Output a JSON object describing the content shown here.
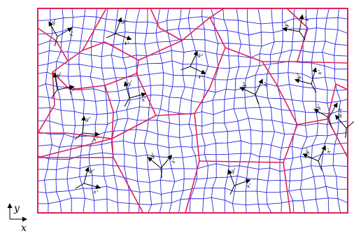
{
  "figure": {
    "colors": {
      "mesh_lines": "#2a2ae0",
      "grain_boundaries": "#e0205a",
      "frame": "#e0205a",
      "arrows": "#000000",
      "background": "#ffffff"
    },
    "global_axes": {
      "x_label": "x",
      "y_label": "y"
    },
    "local_axes": {
      "x_label": "x'",
      "y_label": "y'"
    }
  }
}
